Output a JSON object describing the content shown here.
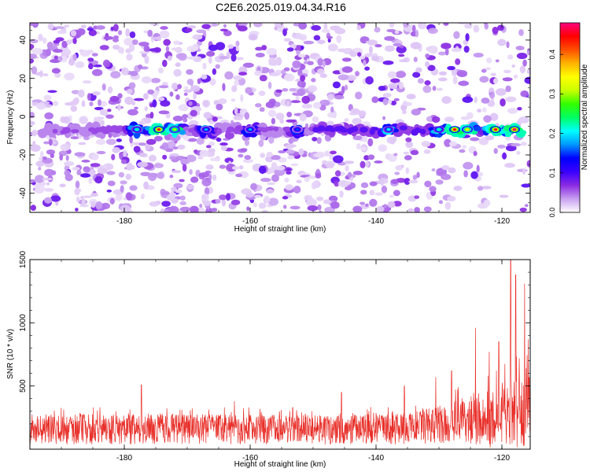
{
  "figure_title": "C2E6.2025.019.04.34.R16",
  "chart_data": [
    {
      "type": "heatmap",
      "title": "C2E6.2025.019.04.34.R16",
      "xlabel": "Height of straight line (km)",
      "ylabel": "Frequency (Hz)",
      "xlim": [
        -195,
        -115.5
      ],
      "ylim": [
        -50,
        49
      ],
      "x_ticks": [
        -180,
        -160,
        -140,
        -120
      ],
      "y_ticks": [
        -40,
        -20,
        0,
        20,
        40
      ],
      "colorbar": {
        "label": "Normalized spectral amplitude",
        "range": [
          0,
          0.48
        ],
        "ticks": [
          0.0,
          0.1,
          0.2,
          0.3,
          0.4
        ],
        "colormap": [
          "#ffffff",
          "#c8a0f0",
          "#8a2be2",
          "#3a00ff",
          "#0000ff",
          "#0096ff",
          "#00ffff",
          "#00ff64",
          "#32ff00",
          "#c8ff00",
          "#ffff00",
          "#ffb400",
          "#ff5000",
          "#ff0000",
          "#ff0080"
        ]
      },
      "signal_band": {
        "center_frequency_hz": -7,
        "peaks": [
          {
            "x": -178,
            "amp": 0.22
          },
          {
            "x": -174.5,
            "amp": 0.45
          },
          {
            "x": -172,
            "amp": 0.3
          },
          {
            "x": -167,
            "amp": 0.18
          },
          {
            "x": -160,
            "amp": 0.18
          },
          {
            "x": -152.5,
            "amp": 0.15
          },
          {
            "x": -138,
            "amp": 0.2
          },
          {
            "x": -130,
            "amp": 0.22
          },
          {
            "x": -127.5,
            "amp": 0.45
          },
          {
            "x": -125.5,
            "amp": 0.35
          },
          {
            "x": -121,
            "amp": 0.45
          },
          {
            "x": -118,
            "amp": 0.47
          }
        ]
      }
    },
    {
      "type": "line",
      "xlabel": "Height of straight line (km)",
      "ylabel": "SNR (10 * v/v)",
      "xlim": [
        -195,
        -115.5
      ],
      "ylim": [
        0,
        1500
      ],
      "x_ticks": [
        -180,
        -160,
        -140,
        -120
      ],
      "y_ticks": [
        500,
        1000,
        1500
      ],
      "line_color": "#e8302a",
      "baseline_level": 150,
      "noise_band": [
        0,
        350
      ],
      "spikes": [
        {
          "x": -177.3,
          "y": 510
        },
        {
          "x": -162.5,
          "y": 380
        },
        {
          "x": -145.5,
          "y": 450
        },
        {
          "x": -135.5,
          "y": 500
        },
        {
          "x": -130.5,
          "y": 570
        },
        {
          "x": -128,
          "y": 620
        },
        {
          "x": -124.2,
          "y": 960
        },
        {
          "x": -122,
          "y": 770
        },
        {
          "x": -120.5,
          "y": 850
        },
        {
          "x": -118.6,
          "y": 1500
        },
        {
          "x": -117.8,
          "y": 1380
        },
        {
          "x": -116.4,
          "y": 1310
        },
        {
          "x": -115.8,
          "y": 870
        }
      ]
    }
  ]
}
